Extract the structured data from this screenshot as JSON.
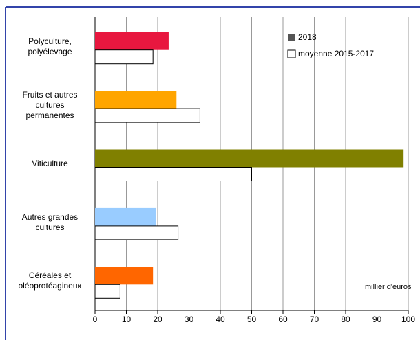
{
  "chart_data": {
    "type": "barh",
    "categories": [
      "Polyculture,\npolyélevage",
      "Fruits et autres\ncultures\npermanentes",
      "Viticulture",
      "Autres grandes\ncultures",
      "Céréales et\noléoprotéagineux"
    ],
    "series": [
      {
        "name": "2018",
        "color": "#555555",
        "colors": [
          "#e8173f",
          "#ffa500",
          "#808000",
          "#99ccff",
          "#ff6600"
        ],
        "values": [
          23.5,
          26,
          98.5,
          19.5,
          18.5
        ]
      },
      {
        "name": "moyenne 2015-2017",
        "color": "#ffffff",
        "values": [
          18.5,
          33.5,
          50,
          26.5,
          8
        ]
      }
    ],
    "xlim": [
      0,
      100
    ],
    "xticks": [
      0,
      10,
      20,
      30,
      40,
      50,
      60,
      70,
      80,
      90,
      100
    ],
    "annotation": "millier d'euros",
    "grid": true
  }
}
